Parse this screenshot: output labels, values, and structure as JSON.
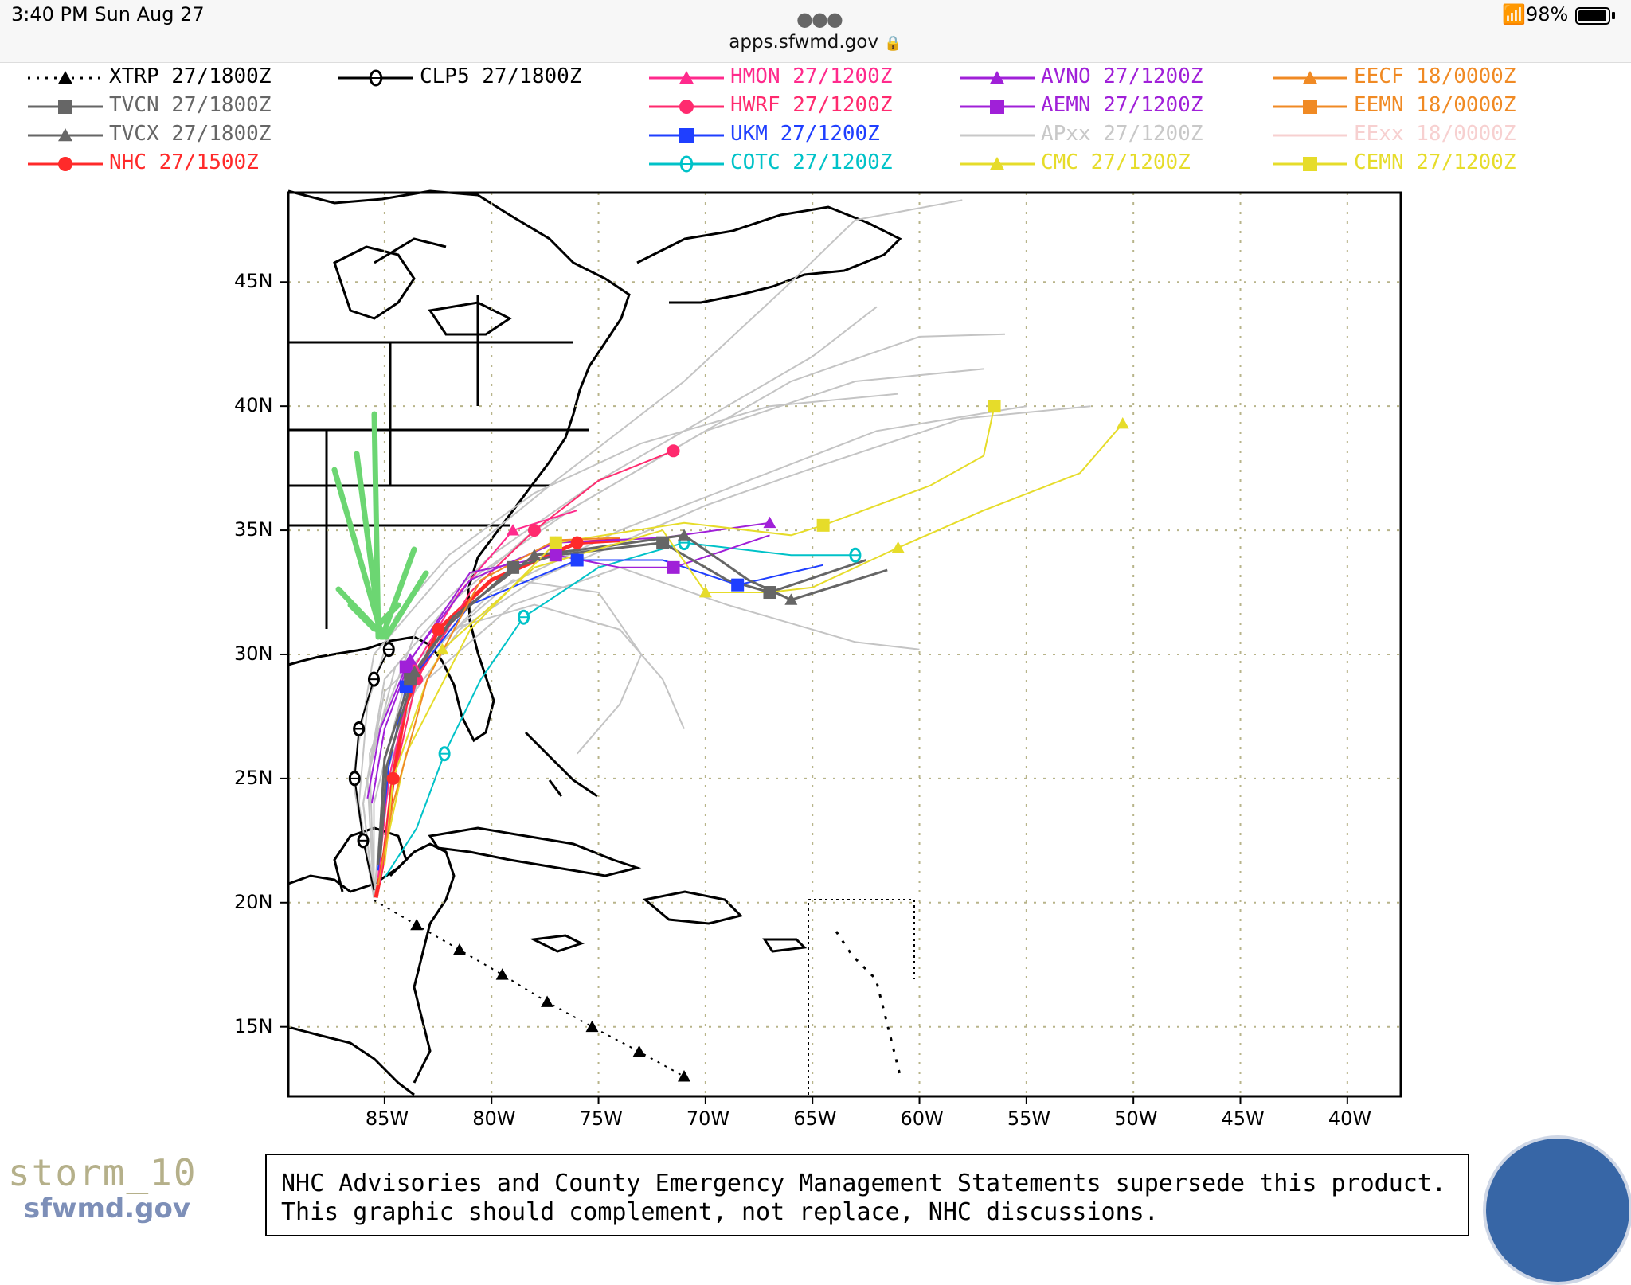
{
  "status_bar": {
    "time": "3:40 PM   Sun Aug 27",
    "url": "apps.sfwmd.gov",
    "lock_icon": "lock-icon",
    "wifi_icon": "wifi-icon",
    "battery_percent": "98%",
    "battery_level": 0.98
  },
  "legend": [
    {
      "label": "XTRP  27/1800Z",
      "color": "#000000",
      "marker": "triangle",
      "style": "dotted"
    },
    {
      "label": "TVCN  27/1800Z",
      "color": "#666666",
      "marker": "square",
      "style": "solid"
    },
    {
      "label": "TVCX  27/1800Z",
      "color": "#666666",
      "marker": "triangle",
      "style": "solid"
    },
    {
      "label": "NHC  27/1500Z",
      "color": "#ff2a2a",
      "marker": "circle",
      "style": "solid"
    },
    {
      "label": "CLP5  27/1800Z",
      "color": "#000000",
      "marker": "theta",
      "style": "solid"
    },
    {
      "label": "HMON  27/1200Z",
      "color": "#ff2a8c",
      "marker": "triangle",
      "style": "solid"
    },
    {
      "label": "HWRF  27/1200Z",
      "color": "#ff2a6e",
      "marker": "circle",
      "style": "solid"
    },
    {
      "label": "UKM   27/1200Z",
      "color": "#1f3fff",
      "marker": "square",
      "style": "solid"
    },
    {
      "label": "COTC  27/1200Z",
      "color": "#00c2c8",
      "marker": "theta",
      "style": "solid"
    },
    {
      "label": "AVNO  27/1200Z",
      "color": "#a020d8",
      "marker": "triangle",
      "style": "solid"
    },
    {
      "label": "AEMN  27/1200Z",
      "color": "#a020d8",
      "marker": "square",
      "style": "solid"
    },
    {
      "label": "APxx   27/1200Z",
      "color": "#c8c8c8",
      "marker": "none",
      "style": "solid"
    },
    {
      "label": "CMC   27/1200Z",
      "color": "#e6dc2a",
      "marker": "triangle",
      "style": "solid"
    },
    {
      "label": "EECF  18/0000Z",
      "color": "#f08a24",
      "marker": "triangle",
      "style": "solid"
    },
    {
      "label": "EEMN  18/0000Z",
      "color": "#f08a24",
      "marker": "square",
      "style": "solid"
    },
    {
      "label": "EExx   18/0000Z",
      "color": "#f7d0d0",
      "marker": "none",
      "style": "solid"
    },
    {
      "label": "CEMN  27/1200Z",
      "color": "#e6dc2a",
      "marker": "square",
      "style": "solid"
    }
  ],
  "map": {
    "lon_ticks": [
      "85W",
      "80W",
      "75W",
      "70W",
      "65W",
      "60W",
      "55W",
      "50W",
      "45W",
      "40W"
    ],
    "lat_ticks": [
      "45N",
      "40N",
      "35N",
      "30N",
      "25N",
      "20N",
      "15N"
    ],
    "lon_range": [
      -89.5,
      -37.5
    ],
    "lat_range": [
      12.2,
      48.6
    ],
    "grid": true
  },
  "footer": {
    "storm_id": "storm_10",
    "site": "sfwmd.gov",
    "disclaimer_line1": "NHC Advisories and County Emergency Management Statements supersede this product.",
    "disclaimer_line2": "This graphic should complement, not replace, NHC discussions.",
    "seal_icon": "water-management-seal-icon"
  }
}
